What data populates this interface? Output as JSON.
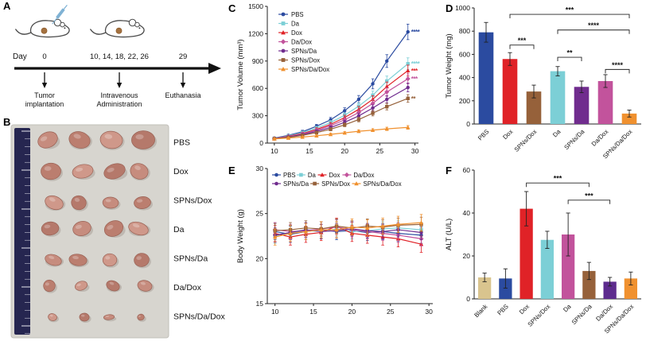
{
  "panels": {
    "a": {
      "label": "A",
      "day_word": "Day",
      "timeline": [
        {
          "day": "0",
          "event": "Tumor implantation"
        },
        {
          "day": "10, 14, 18, 22, 26",
          "event": "Intravenous Administration"
        },
        {
          "day": "29",
          "event": "Euthanasia"
        }
      ]
    },
    "b": {
      "label": "B",
      "rows": [
        {
          "label": "PBS",
          "size": 14
        },
        {
          "label": "Dox",
          "size": 12.5
        },
        {
          "label": "SPNs/Dox",
          "size": 10.5
        },
        {
          "label": "Da",
          "size": 11.5
        },
        {
          "label": "SPNs/Da",
          "size": 10
        },
        {
          "label": "Da/Dox",
          "size": 8.5
        },
        {
          "label": "SPNs/Da/Dox",
          "size": 5.5
        }
      ]
    },
    "c": {
      "label": "C"
    },
    "d": {
      "label": "D"
    },
    "e": {
      "label": "E"
    },
    "f": {
      "label": "F"
    }
  },
  "chart_data": [
    {
      "id": "tumor_volume",
      "panel": "C",
      "type": "line",
      "ylabel": "Tumor Volume (mm³)",
      "xlabel": "",
      "x": [
        10,
        12,
        14,
        16,
        18,
        20,
        22,
        24,
        26,
        29
      ],
      "xticks": [
        10,
        15,
        20,
        25,
        30
      ],
      "xlim": [
        9,
        30.5
      ],
      "ylim": [
        0,
        1500
      ],
      "yticks": [
        0,
        300,
        600,
        900,
        1200,
        1500
      ],
      "legend_position": "upper-left",
      "series": [
        {
          "name": "PBS",
          "color": "#2b4ba0",
          "marker": "circle",
          "values": [
            55,
            85,
            125,
            185,
            255,
            355,
            480,
            650,
            900,
            1220
          ],
          "err": [
            10,
            12,
            16,
            20,
            26,
            32,
            42,
            55,
            70,
            85
          ],
          "sig": "****"
        },
        {
          "name": "Da",
          "color": "#7ccfd6",
          "marker": "square",
          "values": [
            52,
            80,
            115,
            165,
            225,
            305,
            405,
            525,
            680,
            870
          ],
          "err": [
            10,
            12,
            15,
            18,
            22,
            28,
            36,
            45,
            55,
            65
          ],
          "sig": "****"
        },
        {
          "name": "Dox",
          "color": "#e02227",
          "marker": "triangle",
          "values": [
            50,
            75,
            105,
            150,
            205,
            280,
            370,
            480,
            620,
            795
          ],
          "err": [
            8,
            10,
            14,
            18,
            21,
            26,
            32,
            40,
            50,
            60
          ],
          "sig": "***"
        },
        {
          "name": "Da/Dox",
          "color": "#c2539c",
          "marker": "diamond",
          "values": [
            50,
            72,
            100,
            140,
            190,
            255,
            335,
            435,
            560,
            705
          ],
          "err": [
            8,
            10,
            12,
            16,
            20,
            24,
            30,
            38,
            46,
            55
          ],
          "sig": "***"
        },
        {
          "name": "SPNs/Da",
          "color": "#702c8e",
          "marker": "circle",
          "values": [
            48,
            68,
            92,
            128,
            170,
            228,
            298,
            385,
            480,
            610
          ],
          "err": [
            8,
            9,
            12,
            15,
            18,
            22,
            28,
            34,
            40,
            48
          ],
          "sig": ""
        },
        {
          "name": "SPNs/Dox",
          "color": "#96613a",
          "marker": "square",
          "values": [
            48,
            62,
            85,
            115,
            152,
            200,
            258,
            328,
            400,
            490
          ],
          "err": [
            7,
            9,
            11,
            14,
            17,
            20,
            25,
            30,
            36,
            42
          ],
          "sig": "**"
        },
        {
          "name": "SPNs/Da/Dox",
          "color": "#f0912f",
          "marker": "triangle",
          "values": [
            46,
            55,
            66,
            80,
            96,
            112,
            130,
            142,
            156,
            172
          ],
          "err": [
            6,
            8,
            9,
            10,
            12,
            13,
            15,
            16,
            18,
            20
          ],
          "sig": ""
        }
      ]
    },
    {
      "id": "tumor_weight",
      "panel": "D",
      "type": "bar",
      "ylabel": "Tumor Weight (mg)",
      "categories": [
        "PBS",
        "Dox",
        "SPNs/Dox",
        "Da",
        "SPNs/Da",
        "Da/Dox",
        "SPNs/Da/Dox"
      ],
      "values": [
        790,
        560,
        280,
        455,
        320,
        370,
        90
      ],
      "errors": [
        85,
        55,
        55,
        40,
        50,
        55,
        30
      ],
      "colors": [
        "#2b4ba0",
        "#e02227",
        "#96613a",
        "#7ccfd6",
        "#702c8e",
        "#c2539c",
        "#f0912f"
      ],
      "ylim": [
        0,
        1000
      ],
      "yticks": [
        0,
        200,
        400,
        600,
        800,
        1000
      ],
      "significance": [
        {
          "from": 1,
          "to": 2,
          "label": "***",
          "y": 680
        },
        {
          "from": 1,
          "to": 6,
          "label": "***",
          "y": 945
        },
        {
          "from": 3,
          "to": 4,
          "label": "**",
          "y": 575
        },
        {
          "from": 3,
          "to": 6,
          "label": "****",
          "y": 810
        },
        {
          "from": 5,
          "to": 6,
          "label": "****",
          "y": 470
        }
      ]
    },
    {
      "id": "body_weight",
      "panel": "E",
      "type": "line",
      "ylabel": "Body Weight (g)",
      "xlabel": "",
      "x": [
        10,
        12,
        14,
        16,
        18,
        20,
        22,
        24,
        26,
        29
      ],
      "xticks": [
        10,
        15,
        20,
        25,
        30
      ],
      "xlim": [
        9,
        30.5
      ],
      "ylim": [
        15,
        30
      ],
      "yticks": [
        15,
        20,
        25,
        30
      ],
      "legend_position": "top",
      "series": [
        {
          "name": "PBS",
          "color": "#2b4ba0",
          "marker": "circle",
          "values": [
            23,
            22.7,
            23,
            23.2,
            23,
            23.1,
            22.9,
            23,
            22.8,
            22.6
          ],
          "err": 0.9,
          "sig": ""
        },
        {
          "name": "Da",
          "color": "#7ccfd6",
          "marker": "square",
          "values": [
            22.5,
            22.9,
            23.1,
            23,
            23.3,
            23,
            23.1,
            23.3,
            23.4,
            23.2
          ],
          "err": 0.8,
          "sig": ""
        },
        {
          "name": "Dox",
          "color": "#e02227",
          "marker": "triangle",
          "values": [
            22.8,
            22.4,
            22.7,
            22.9,
            23.6,
            22.8,
            22.6,
            22.4,
            22.2,
            21.6
          ],
          "err": 0.9,
          "sig": ""
        },
        {
          "name": "Da/Dox",
          "color": "#c2539c",
          "marker": "diamond",
          "values": [
            23.2,
            23,
            23.1,
            23.3,
            23.5,
            23.2,
            23,
            22.8,
            22.6,
            22.2
          ],
          "err": 0.8,
          "sig": ""
        },
        {
          "name": "SPNs/Da",
          "color": "#702c8e",
          "marker": "circle",
          "values": [
            22.6,
            22.9,
            23.2,
            23,
            23.1,
            23.3,
            23.1,
            23,
            23.2,
            22.9
          ],
          "err": 0.8,
          "sig": ""
        },
        {
          "name": "SPNs/Dox",
          "color": "#96613a",
          "marker": "square",
          "values": [
            23.1,
            23.2,
            23.4,
            23.3,
            23.6,
            23.4,
            23.6,
            23.5,
            23.7,
            23.8
          ],
          "err": 0.8,
          "sig": ""
        },
        {
          "name": "SPNs/Da/Dox",
          "color": "#f0912f",
          "marker": "triangle",
          "values": [
            22.4,
            22.8,
            23,
            23.2,
            23.2,
            23.5,
            23.4,
            23.6,
            23.8,
            24
          ],
          "err": 0.9,
          "sig": ""
        }
      ]
    },
    {
      "id": "alt",
      "panel": "F",
      "type": "bar",
      "ylabel": "ALT (U/L)",
      "categories": [
        "Blank",
        "PBS",
        "Dox",
        "SPNs/Dox",
        "Da",
        "SPNs/Da",
        "Da/Dox",
        "SPNs/Da/Dox"
      ],
      "values": [
        10,
        9.5,
        42,
        27.5,
        30,
        13,
        8,
        9.5
      ],
      "errors": [
        2,
        4.5,
        8,
        4,
        10,
        4,
        2,
        3
      ],
      "colors": [
        "#d9c48e",
        "#2b4ba0",
        "#e02227",
        "#7ccfd6",
        "#c2539c",
        "#96613a",
        "#5d2b8e",
        "#f0912f"
      ],
      "ylim": [
        0,
        60
      ],
      "yticks": [
        0,
        20,
        40,
        60
      ],
      "significance": [
        {
          "from": 2,
          "to": 5,
          "label": "***",
          "y": 54
        },
        {
          "from": 4,
          "to": 6,
          "label": "***",
          "y": 46
        }
      ]
    }
  ]
}
